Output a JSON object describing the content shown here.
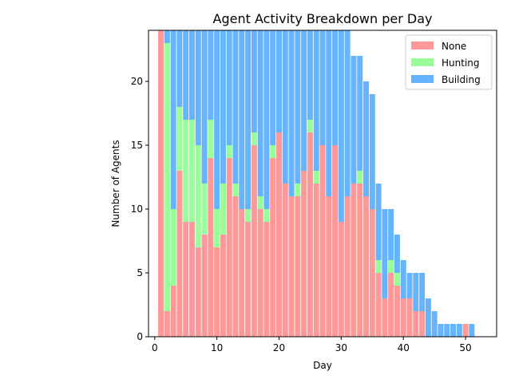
{
  "chart_data": {
    "type": "bar",
    "stacked": true,
    "title": "Agent Activity Breakdown per Day",
    "xlabel": "Day",
    "ylabel": "Number of Agents",
    "xlim": [
      -1,
      55
    ],
    "ylim": [
      0,
      24
    ],
    "xticks": [
      0,
      10,
      20,
      30,
      40,
      50
    ],
    "yticks": [
      0,
      5,
      10,
      15,
      20
    ],
    "grid": false,
    "legend_position": "top-right",
    "days": [
      1,
      2,
      3,
      4,
      5,
      6,
      7,
      8,
      9,
      10,
      11,
      12,
      13,
      14,
      15,
      16,
      17,
      18,
      19,
      20,
      21,
      22,
      23,
      24,
      25,
      26,
      27,
      28,
      29,
      30,
      31,
      32,
      33,
      34,
      35,
      36,
      37,
      38,
      39,
      40,
      41,
      42,
      43,
      44,
      45,
      46,
      47,
      48,
      49,
      50,
      51
    ],
    "series": [
      {
        "name": "None",
        "color": "#ff9999",
        "values": [
          24,
          2,
          4,
          13,
          9,
          9,
          7,
          8,
          14,
          7,
          8,
          14,
          11,
          10,
          9,
          15,
          10,
          9,
          14,
          16,
          12,
          11,
          11,
          13,
          16,
          12,
          15,
          11,
          15,
          9,
          11,
          12,
          12,
          11,
          10,
          5,
          3,
          5,
          4,
          3,
          3,
          2,
          2,
          0,
          0,
          0,
          0,
          0,
          0,
          1,
          0
        ]
      },
      {
        "name": "Hunting",
        "color": "#99ff99",
        "values": [
          0,
          21,
          6,
          5,
          8,
          8,
          8,
          4,
          3,
          3,
          4,
          1,
          1,
          0,
          1,
          1,
          1,
          1,
          1,
          0,
          0,
          0,
          1,
          0,
          1,
          1,
          0,
          0,
          0,
          0,
          0,
          0,
          1,
          0,
          0,
          1,
          0,
          1,
          1,
          0,
          0,
          0,
          0,
          0,
          0,
          0,
          0,
          0,
          0,
          0,
          0
        ]
      },
      {
        "name": "Building",
        "color": "#66b3ff",
        "values": [
          0,
          1,
          14,
          6,
          7,
          7,
          9,
          12,
          7,
          14,
          12,
          9,
          12,
          14,
          14,
          8,
          13,
          14,
          9,
          8,
          12,
          13,
          12,
          11,
          7,
          11,
          9,
          13,
          9,
          15,
          13,
          10,
          9,
          9,
          9,
          6,
          7,
          4,
          3,
          3,
          2,
          3,
          3,
          3,
          2,
          1,
          1,
          1,
          1,
          0,
          1
        ]
      }
    ]
  }
}
